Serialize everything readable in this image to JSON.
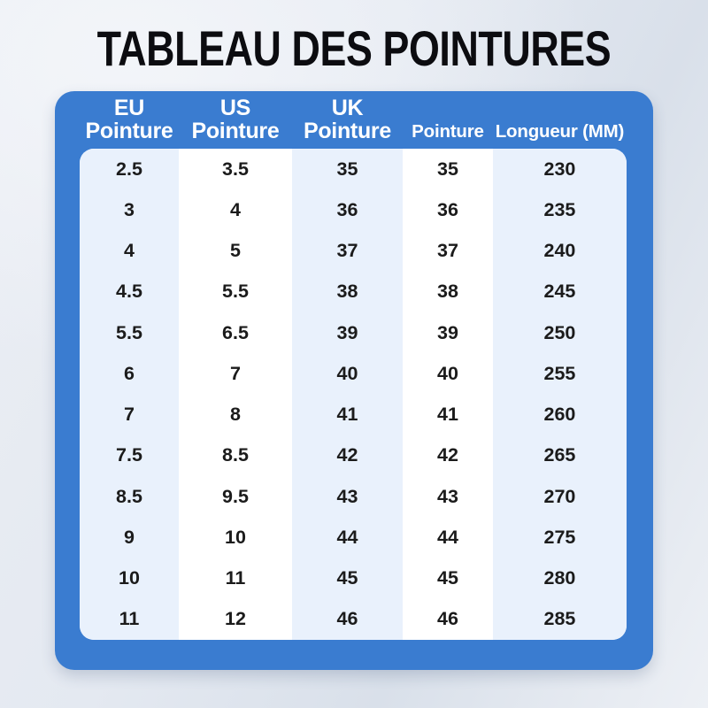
{
  "title": "TABLEAU DES POINTURES",
  "chart_data": {
    "type": "table",
    "title": "TABLEAU DES POINTURES",
    "columns": [
      {
        "id": "eu-pointure",
        "lines": [
          "EU",
          "Pointure"
        ]
      },
      {
        "id": "us-pointure",
        "lines": [
          "US",
          "Pointure"
        ]
      },
      {
        "id": "uk-pointure",
        "lines": [
          "UK",
          "Pointure"
        ]
      },
      {
        "id": "pointure",
        "lines": [
          "Pointure"
        ]
      },
      {
        "id": "longueur-mm",
        "lines": [
          "Longueur (MM)"
        ]
      }
    ],
    "rows": [
      [
        "2.5",
        "3.5",
        "35",
        "35",
        "230"
      ],
      [
        "3",
        "4",
        "36",
        "36",
        "235"
      ],
      [
        "4",
        "5",
        "37",
        "37",
        "240"
      ],
      [
        "4.5",
        "5.5",
        "38",
        "38",
        "245"
      ],
      [
        "5.5",
        "6.5",
        "39",
        "39",
        "250"
      ],
      [
        "6",
        "7",
        "40",
        "40",
        "255"
      ],
      [
        "7",
        "8",
        "41",
        "41",
        "260"
      ],
      [
        "7.5",
        "8.5",
        "42",
        "42",
        "265"
      ],
      [
        "8.5",
        "9.5",
        "43",
        "43",
        "270"
      ],
      [
        "9",
        "10",
        "44",
        "44",
        "275"
      ],
      [
        "10",
        "11",
        "45",
        "45",
        "280"
      ],
      [
        "11",
        "12",
        "46",
        "46",
        "285"
      ]
    ],
    "layout": {
      "legend": "none",
      "grid": "off",
      "column_band_pattern": [
        "tint",
        "white",
        "tint",
        "white",
        "tint"
      ]
    }
  },
  "colors": {
    "card_blue": "#3a7cd0",
    "band_tint": "#e9f1fc",
    "band_white": "#ffffff",
    "header_text": "#ffffff",
    "cell_text": "#1b1b1b",
    "title_text": "#0c0c10"
  }
}
